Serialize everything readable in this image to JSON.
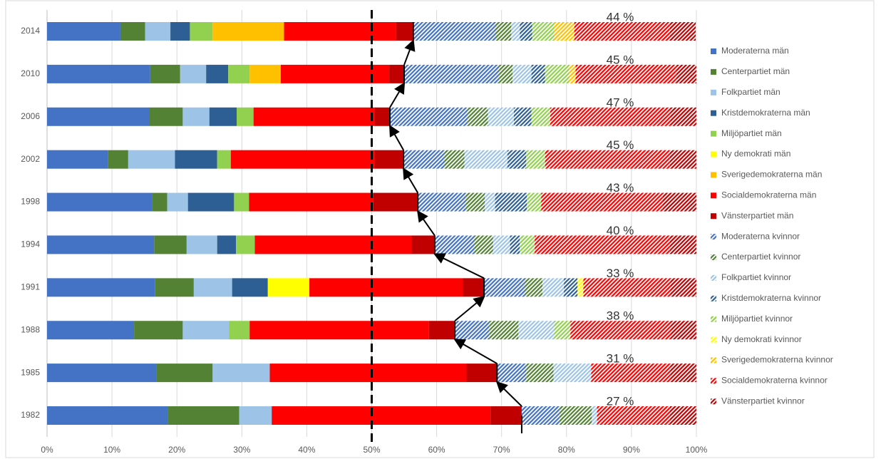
{
  "chart_data": {
    "type": "stacked_bar_horizontal",
    "categories": [
      "1982",
      "1985",
      "1988",
      "1991",
      "1994",
      "1998",
      "2002",
      "2006",
      "2010",
      "2014"
    ],
    "series": [
      {
        "name": "Moderaterna män",
        "color": "#4472c4",
        "hatch": false,
        "values": [
          18.6,
          16.9,
          13.4,
          16.6,
          16.5,
          16.2,
          9.4,
          15.7,
          15.9,
          11.3
        ]
      },
      {
        "name": "Centerpartiet män",
        "color": "#548235",
        "hatch": false,
        "values": [
          11.0,
          8.6,
          7.5,
          6.0,
          5.0,
          2.3,
          3.1,
          5.2,
          4.6,
          3.8
        ]
      },
      {
        "name": "Folkpartiet män",
        "color": "#9dc3e6",
        "hatch": false,
        "values": [
          5.0,
          8.8,
          7.1,
          5.9,
          4.7,
          3.2,
          7.2,
          4.1,
          4.0,
          3.9
        ]
      },
      {
        "name": "Kristdemokraterna män",
        "color": "#2e5f94",
        "hatch": false,
        "values": [
          0,
          0,
          0,
          5.5,
          2.9,
          7.1,
          6.5,
          4.2,
          3.4,
          3.0
        ]
      },
      {
        "name": "Miljöpartiet män",
        "color": "#92d050",
        "hatch": false,
        "values": [
          0,
          0,
          3.2,
          0,
          2.9,
          2.3,
          2.1,
          2.6,
          3.3,
          3.5
        ]
      },
      {
        "name": "Ny demokrati män",
        "color": "#ffff00",
        "hatch": false,
        "values": [
          0,
          0,
          0,
          6.4,
          0,
          0,
          0,
          0,
          0,
          0
        ]
      },
      {
        "name": "Sverigedemokraterna män",
        "color": "#ffc000",
        "hatch": false,
        "values": [
          0,
          0,
          0,
          0,
          0,
          0,
          0,
          0,
          4.8,
          11.0
        ]
      },
      {
        "name": "Socialdemokraterna män",
        "color": "#ff0000",
        "hatch": false,
        "values": [
          33.7,
          30.3,
          27.6,
          23.6,
          24.1,
          19.1,
          22.1,
          18.6,
          16.7,
          17.2
        ]
      },
      {
        "name": "Vänsterpartiet män",
        "color": "#c00000",
        "hatch": false,
        "values": [
          4.8,
          4.7,
          4.0,
          3.3,
          3.6,
          6.9,
          4.5,
          2.4,
          2.3,
          2.7
        ]
      },
      {
        "name": "Moderaterna kvinnor",
        "color": "#4472c4",
        "hatch": true,
        "values": [
          5.8,
          4.5,
          5.3,
          6.3,
          6.1,
          7.4,
          6.3,
          12.0,
          14.6,
          12.7
        ]
      },
      {
        "name": "Centerpartiet kvinnor",
        "color": "#548235",
        "hatch": true,
        "values": [
          5.0,
          4.2,
          4.5,
          2.7,
          2.9,
          2.9,
          3.1,
          3.1,
          2.1,
          2.4
        ]
      },
      {
        "name": "Folkpartiet kvinnor",
        "color": "#9dc3e6",
        "hatch": true,
        "values": [
          0.8,
          5.8,
          5.5,
          3.3,
          2.6,
          1.6,
          6.6,
          4.0,
          2.9,
          1.3
        ]
      },
      {
        "name": "Kristdemokraterna kvinnor",
        "color": "#2e5f94",
        "hatch": true,
        "values": [
          0,
          0,
          0,
          2.1,
          1.5,
          4.9,
          2.9,
          2.7,
          2.1,
          1.9
        ]
      },
      {
        "name": "Miljöpartiet kvinnor",
        "color": "#92d050",
        "hatch": true,
        "values": [
          0,
          0,
          2.5,
          0,
          2.3,
          2.2,
          2.9,
          2.9,
          3.7,
          3.4
        ]
      },
      {
        "name": "Ny demokrati kvinnor",
        "color": "#ffff00",
        "hatch": true,
        "values": [
          0,
          0,
          0,
          0.9,
          0,
          0,
          0,
          0,
          0,
          0
        ]
      },
      {
        "name": "Sverigedemokraterna kvinnor",
        "color": "#ffc000",
        "hatch": true,
        "values": [
          0,
          0,
          0,
          0,
          0,
          0,
          0,
          0,
          1.0,
          3.1
        ]
      },
      {
        "name": "Socialdemokraterna kvinnor",
        "color": "#ff0000",
        "hatch": true,
        "values": [
          11.2,
          12.2,
          15.5,
          13.4,
          20.8,
          18.7,
          19.2,
          18.5,
          15.5,
          14.7
        ]
      },
      {
        "name": "Vänsterpartiet kvinnor",
        "color": "#c00000",
        "hatch": true,
        "values": [
          4.1,
          4.0,
          3.9,
          4.0,
          4.1,
          5.2,
          4.1,
          4.0,
          3.1,
          4.0
        ]
      }
    ],
    "annotations": [
      "27 %",
      "31 %",
      "38 %",
      "33 %",
      "40 %",
      "43 %",
      "45 %",
      "47 %",
      "45 %",
      "44 %"
    ],
    "reference_line": 50,
    "xlim": [
      0,
      100
    ],
    "xticks": [
      {
        "value": 0,
        "label": "0%"
      },
      {
        "value": 10,
        "label": "10%"
      },
      {
        "value": 20,
        "label": "20%"
      },
      {
        "value": 30,
        "label": "30%"
      },
      {
        "value": 40,
        "label": "40%"
      },
      {
        "value": 50,
        "label": "50%"
      },
      {
        "value": 60,
        "label": "60%"
      },
      {
        "value": 70,
        "label": "70%"
      },
      {
        "value": 80,
        "label": "80%"
      },
      {
        "value": 90,
        "label": "90%"
      },
      {
        "value": 100,
        "label": "100%"
      }
    ],
    "grid": true,
    "legend": "right"
  }
}
